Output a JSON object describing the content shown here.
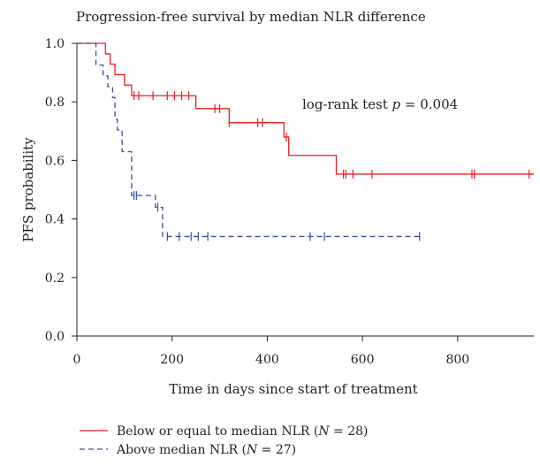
{
  "chart_data": {
    "type": "line",
    "title": "Progression-free survival by median NLR difference",
    "xlabel": "Time in days since start of treatment",
    "ylabel": "PFS probability",
    "xlim": [
      0,
      960
    ],
    "ylim": [
      0,
      1.0
    ],
    "x_ticks": [
      0,
      200,
      400,
      600,
      800
    ],
    "y_ticks": [
      0.0,
      0.2,
      0.4,
      0.6,
      0.8,
      1.0
    ],
    "x_tick_labels": [
      "0",
      "200",
      "400",
      "600",
      "800"
    ],
    "y_tick_labels": [
      "0.0",
      "0.2",
      "0.4",
      "0.6",
      "0.8",
      "1.0"
    ],
    "annotation": {
      "prefix": "log-rank test ",
      "p_symbol": "p",
      "suffix": " = 0.004"
    },
    "legend_position": "bottom",
    "series": [
      {
        "name": "Below or equal to median NLR (N = 28)",
        "legend_prefix": "Below or equal to median NLR (",
        "legend_n": "N",
        "legend_suffix": " = 28)",
        "color": "#ed1c24",
        "dash": "solid",
        "steps": [
          [
            0,
            1.0
          ],
          [
            60,
            0.964
          ],
          [
            70,
            0.929
          ],
          [
            80,
            0.893
          ],
          [
            100,
            0.857
          ],
          [
            115,
            0.821
          ],
          [
            250,
            0.777
          ],
          [
            320,
            0.729
          ],
          [
            435,
            0.68
          ],
          [
            445,
            0.617
          ],
          [
            545,
            0.553
          ],
          [
            960,
            0.553
          ]
        ],
        "censor": [
          120,
          130,
          160,
          190,
          205,
          220,
          235,
          290,
          300,
          320,
          380,
          390,
          440,
          560,
          565,
          580,
          620,
          830,
          835,
          950
        ]
      },
      {
        "name": "Above median NLR (N = 27)",
        "legend_prefix": "Above median NLR (",
        "legend_n": "N",
        "legend_suffix": " = 27)",
        "color": "#3a4ba0",
        "dash": "dashed",
        "steps": [
          [
            0,
            1.0
          ],
          [
            40,
            0.926
          ],
          [
            55,
            0.889
          ],
          [
            65,
            0.852
          ],
          [
            75,
            0.815
          ],
          [
            80,
            0.741
          ],
          [
            85,
            0.704
          ],
          [
            95,
            0.63
          ],
          [
            115,
            0.48
          ],
          [
            165,
            0.44
          ],
          [
            180,
            0.34
          ],
          [
            720,
            0.34
          ]
        ],
        "censor": [
          120,
          125,
          170,
          190,
          215,
          240,
          255,
          275,
          490,
          520,
          720
        ]
      }
    ]
  }
}
